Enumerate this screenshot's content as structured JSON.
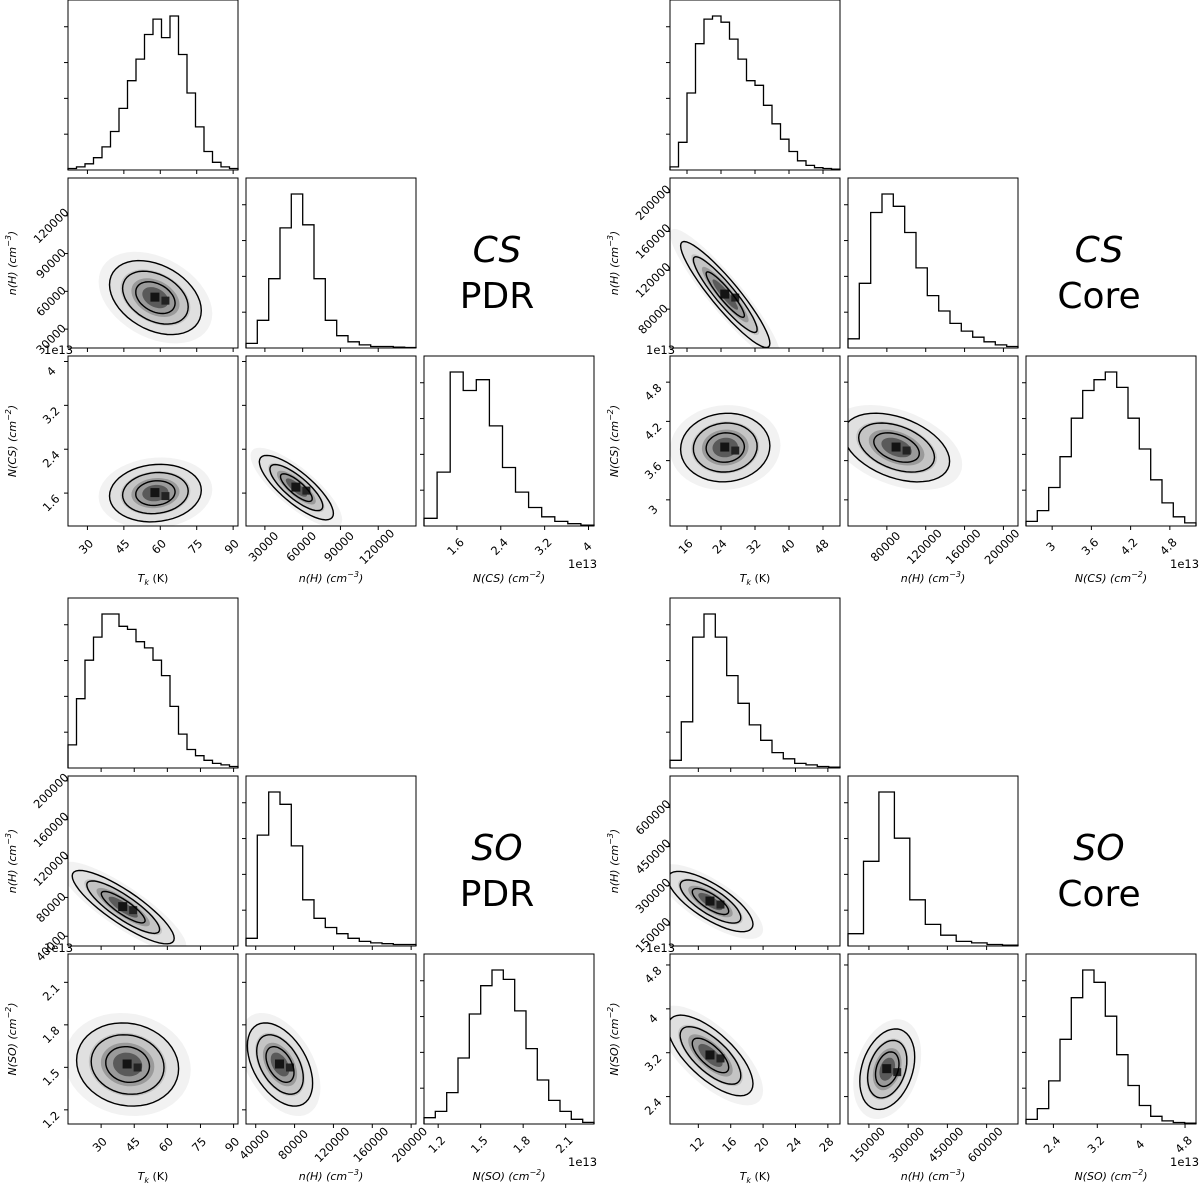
{
  "chart_data": [
    {
      "type": "corner",
      "panel_id": "cs-pdr",
      "label_molecule": "CS",
      "label_region": "PDR",
      "variables": [
        {
          "name": "Tk",
          "axis_label": "T_k (K)",
          "ticks": [
            30,
            45,
            60,
            75,
            90
          ],
          "range": [
            22,
            92
          ]
        },
        {
          "name": "nH",
          "axis_label": "n(H) (cm^-3)",
          "ticks": [
            30000,
            60000,
            90000,
            120000
          ],
          "range": [
            15000,
            150000
          ]
        },
        {
          "name": "NCS",
          "axis_label": "N(CS) (cm^-2)",
          "ticks": [
            1.6,
            2.4,
            3.2,
            4.0
          ],
          "range": [
            1.0,
            4.1
          ],
          "offset": "1e13"
        }
      ],
      "histograms": [
        [
          1,
          2,
          4,
          8,
          15,
          25,
          40,
          58,
          72,
          88,
          98,
          86,
          100,
          75,
          50,
          28,
          12,
          5,
          2,
          1
        ],
        [
          3,
          18,
          45,
          78,
          100,
          80,
          45,
          18,
          8,
          4,
          2,
          1,
          1,
          0.5,
          0.3
        ],
        [
          5,
          35,
          100,
          88,
          95,
          65,
          38,
          22,
          12,
          6,
          3,
          1.5,
          0.5
        ]
      ],
      "peaks": [
        {
          "x": 58,
          "y": 55000,
          "sx": 9,
          "sy": 14000,
          "rho": -0.35
        },
        {
          "x": 58,
          "y": 1.6,
          "sx": 9,
          "sy": 0.25,
          "rho": 0.1
        },
        {
          "x": 55000,
          "y": 1.7,
          "sx": 14000,
          "sy": 0.28,
          "rho": -0.8
        }
      ]
    },
    {
      "type": "corner",
      "panel_id": "cs-core",
      "label_molecule": "CS",
      "label_region": "Core",
      "variables": [
        {
          "name": "Tk",
          "axis_label": "T_k (K)",
          "ticks": [
            16,
            24,
            32,
            40,
            48
          ],
          "range": [
            12,
            52
          ]
        },
        {
          "name": "nH",
          "axis_label": "n(H) (cm^-3)",
          "ticks": [
            80000,
            120000,
            160000,
            200000
          ],
          "range": [
            40000,
            215000
          ]
        },
        {
          "name": "NCS",
          "axis_label": "N(CS) (cm^-2)",
          "ticks": [
            3.0,
            3.6,
            4.2,
            4.8
          ],
          "range": [
            2.6,
            5.2
          ],
          "offset": "1e13"
        }
      ],
      "histograms": [
        [
          2,
          18,
          50,
          82,
          98,
          100,
          96,
          85,
          72,
          58,
          55,
          42,
          30,
          20,
          12,
          6,
          3,
          1.5,
          1,
          0.5
        ],
        [
          6,
          42,
          88,
          100,
          92,
          75,
          52,
          34,
          24,
          16,
          11,
          7,
          4,
          2,
          1
        ],
        [
          3,
          10,
          25,
          45,
          70,
          88,
          95,
          100,
          90,
          70,
          50,
          30,
          15,
          6,
          2
        ]
      ],
      "peaks": [
        {
          "x": 25,
          "y": 95000,
          "sx": 5,
          "sy": 26000,
          "rho": -0.92
        },
        {
          "x": 25,
          "y": 3.8,
          "sx": 5,
          "sy": 0.25,
          "rho": 0.05
        },
        {
          "x": 90000,
          "y": 3.8,
          "sx": 26000,
          "sy": 0.25,
          "rho": -0.4
        }
      ]
    },
    {
      "type": "corner",
      "panel_id": "so-pdr",
      "label_molecule": "SO",
      "label_region": "PDR",
      "variables": [
        {
          "name": "Tk",
          "axis_label": "T_k (K)",
          "ticks": [
            30,
            45,
            60,
            75,
            90
          ],
          "range": [
            15,
            92
          ]
        },
        {
          "name": "nH",
          "axis_label": "n(H) (cm^-3)",
          "ticks": [
            40000,
            80000,
            120000,
            160000,
            200000
          ],
          "range": [
            30000,
            205000
          ]
        },
        {
          "name": "NSO",
          "axis_label": "N(SO) (cm^-2)",
          "ticks": [
            1.2,
            1.5,
            1.8,
            2.1
          ],
          "range": [
            1.1,
            2.3
          ],
          "offset": "1e13"
        }
      ],
      "histograms": [
        [
          15,
          45,
          70,
          85,
          100,
          100,
          92,
          90,
          82,
          78,
          70,
          60,
          40,
          22,
          12,
          8,
          5,
          3,
          2,
          1
        ],
        [
          5,
          72,
          100,
          92,
          65,
          30,
          18,
          12,
          8,
          5,
          3,
          2,
          1.5,
          1,
          1
        ],
        [
          4,
          8,
          20,
          42,
          70,
          88,
          98,
          92,
          72,
          48,
          28,
          15,
          8,
          3,
          1
        ]
      ],
      "peaks": [
        {
          "x": 40,
          "y": 70000,
          "sx": 11,
          "sy": 18000,
          "rho": -0.85
        },
        {
          "x": 42,
          "y": 1.52,
          "sx": 11,
          "sy": 0.14,
          "rho": -0.1
        },
        {
          "x": 65000,
          "y": 1.52,
          "sx": 16000,
          "sy": 0.14,
          "rho": -0.45
        }
      ]
    },
    {
      "type": "corner",
      "panel_id": "so-core",
      "label_molecule": "SO",
      "label_region": "Core",
      "variables": [
        {
          "name": "Tk",
          "axis_label": "T_k (K)",
          "ticks": [
            12,
            16,
            20,
            24,
            28
          ],
          "range": [
            8.5,
            29.5
          ]
        },
        {
          "name": "nH",
          "axis_label": "n(H) (cm^-3)",
          "ticks": [
            150000,
            300000,
            450000,
            600000
          ],
          "range": [
            70000,
            720000
          ]
        },
        {
          "name": "NSO",
          "axis_label": "N(SO) (cm^-2)",
          "ticks": [
            2.4,
            3.2,
            4.0,
            4.8
          ],
          "range": [
            1.9,
            5.0
          ],
          "offset": "1e13"
        }
      ],
      "histograms": [
        [
          5,
          30,
          85,
          100,
          85,
          60,
          42,
          28,
          18,
          10,
          6,
          3,
          2,
          1,
          0.5
        ],
        [
          8,
          55,
          100,
          70,
          30,
          14,
          7,
          3,
          2,
          1,
          0.5
        ],
        [
          3,
          10,
          28,
          55,
          82,
          100,
          92,
          70,
          45,
          25,
          12,
          5,
          2,
          1,
          0.5
        ]
      ],
      "peaks": [
        {
          "x": 13.5,
          "y": 240000,
          "sx": 2.5,
          "sy": 55000,
          "rho": -0.75
        },
        {
          "x": 13.5,
          "y": 3.15,
          "sx": 2.5,
          "sy": 0.35,
          "rho": -0.7
        },
        {
          "x": 220000,
          "y": 2.9,
          "sx": 50000,
          "sy": 0.35,
          "rho": 0.3
        }
      ]
    }
  ]
}
